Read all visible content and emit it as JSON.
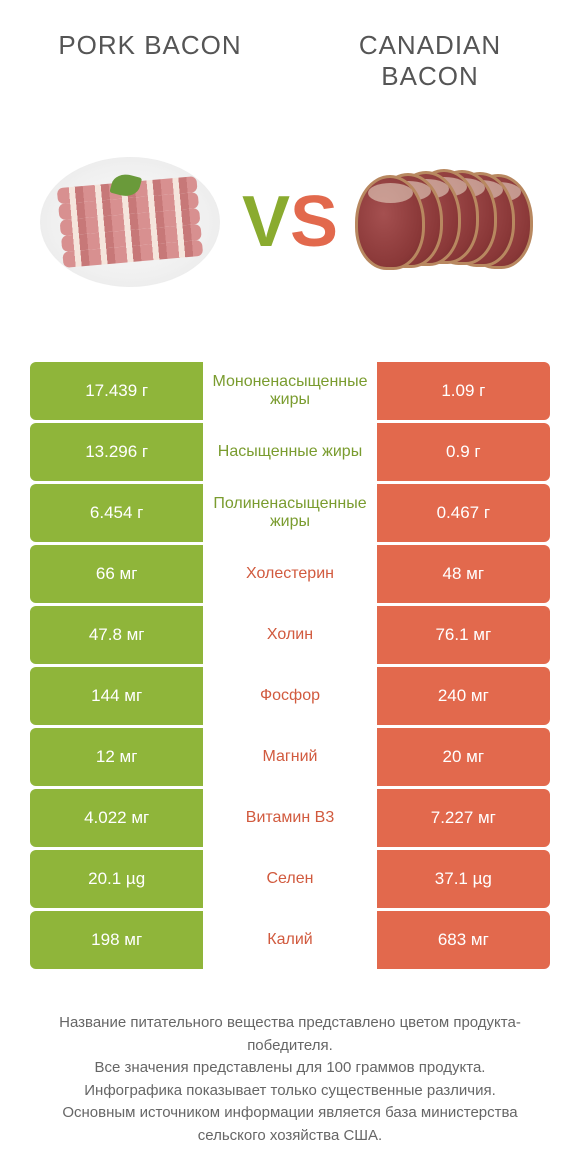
{
  "colors": {
    "green": "#8fb53a",
    "green_dark": "#7a9c2f",
    "orange": "#e2694d",
    "orange_dark": "#d15a3e"
  },
  "header": {
    "left_title": "PORK BACON",
    "right_title": "CANADIAN BACON"
  },
  "vs": {
    "v": "V",
    "s": "S"
  },
  "rows": [
    {
      "left": "17.439 г",
      "label": "Мононенасыщенные жиры",
      "right": "1.09 г",
      "winner": "left"
    },
    {
      "left": "13.296 г",
      "label": "Насыщенные жиры",
      "right": "0.9 г",
      "winner": "left"
    },
    {
      "left": "6.454 г",
      "label": "Полиненасыщенные жиры",
      "right": "0.467 г",
      "winner": "left"
    },
    {
      "left": "66 мг",
      "label": "Холестерин",
      "right": "48 мг",
      "winner": "right"
    },
    {
      "left": "47.8 мг",
      "label": "Холин",
      "right": "76.1 мг",
      "winner": "right"
    },
    {
      "left": "144 мг",
      "label": "Фосфор",
      "right": "240 мг",
      "winner": "right"
    },
    {
      "left": "12 мг",
      "label": "Магний",
      "right": "20 мг",
      "winner": "right"
    },
    {
      "left": "4.022 мг",
      "label": "Витамин B3",
      "right": "7.227 мг",
      "winner": "right"
    },
    {
      "left": "20.1 µg",
      "label": "Селен",
      "right": "37.1 µg",
      "winner": "right"
    },
    {
      "left": "198 мг",
      "label": "Калий",
      "right": "683 мг",
      "winner": "right"
    }
  ],
  "footer": {
    "line1": "Название питательного вещества представлено цветом продукта-победителя.",
    "line2": "Все значения представлены для 100 граммов продукта.",
    "line3": "Инфографика показывает только существенные различия.",
    "line4": "Основным источником информации является база министерства сельского хозяйства США."
  }
}
